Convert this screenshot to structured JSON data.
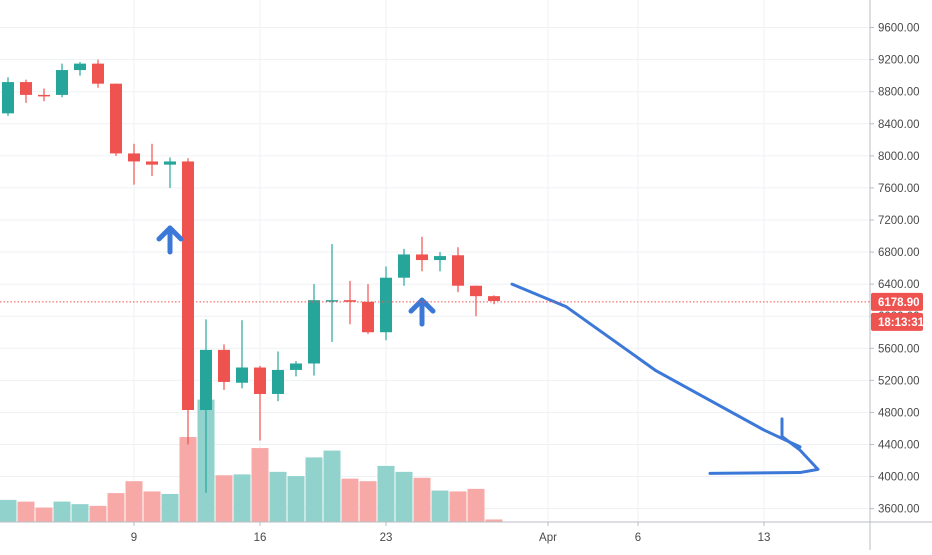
{
  "colors": {
    "up": "#26a69a",
    "down": "#ef5350",
    "up_volume": "#92d2cc",
    "down_volume": "#f7a9a7",
    "grid": "#eef1f4",
    "axis_text": "#4a4a4a",
    "annotation": "#3c78d8",
    "price_line": "#ef5350"
  },
  "price_badge": "6178.90",
  "countdown_badge": "18:13:31",
  "chart_data": {
    "type": "candlestick",
    "x_axis": {
      "type": "date",
      "ticks": [
        {
          "label": "9",
          "date": "2020-03-09"
        },
        {
          "label": "16",
          "date": "2020-03-16"
        },
        {
          "label": "23",
          "date": "2020-03-23"
        },
        {
          "label": "Apr",
          "date": "2020-04-01"
        },
        {
          "label": "6",
          "date": "2020-04-06"
        },
        {
          "label": "13",
          "date": "2020-04-13"
        }
      ],
      "range": [
        "2020-03-02",
        "2020-04-18"
      ]
    },
    "y_axis": {
      "ticks": [
        "9600.00",
        "9200.00",
        "8800.00",
        "8400.00",
        "8000.00",
        "7600.00",
        "7200.00",
        "6800.00",
        "6400.00",
        "6000.00",
        "5600.00",
        "5200.00",
        "4800.00",
        "4400.00",
        "4000.00",
        "3600.00"
      ],
      "ylim": [
        3200,
        9900
      ],
      "position": "right"
    },
    "grid": true,
    "current_price": 6178.9,
    "candles": [
      {
        "date": "2020-03-02",
        "open": 8530,
        "high": 8980,
        "low": 8500,
        "close": 8920
      },
      {
        "date": "2020-03-03",
        "open": 8920,
        "high": 8950,
        "low": 8660,
        "close": 8760
      },
      {
        "date": "2020-03-04",
        "open": 8760,
        "high": 8840,
        "low": 8680,
        "close": 8750
      },
      {
        "date": "2020-03-05",
        "open": 8760,
        "high": 9150,
        "low": 8730,
        "close": 9070
      },
      {
        "date": "2020-03-06",
        "open": 9070,
        "high": 9170,
        "low": 9000,
        "close": 9150
      },
      {
        "date": "2020-03-07",
        "open": 9150,
        "high": 9200,
        "low": 8850,
        "close": 8900
      },
      {
        "date": "2020-03-08",
        "open": 8900,
        "high": 8900,
        "low": 8000,
        "close": 8030
      },
      {
        "date": "2020-03-09",
        "open": 8030,
        "high": 8150,
        "low": 7640,
        "close": 7930
      },
      {
        "date": "2020-03-10",
        "open": 7930,
        "high": 8150,
        "low": 7750,
        "close": 7890
      },
      {
        "date": "2020-03-11",
        "open": 7890,
        "high": 7980,
        "low": 7600,
        "close": 7930
      },
      {
        "date": "2020-03-12",
        "open": 7930,
        "high": 7970,
        "low": 4400,
        "close": 4830
      },
      {
        "date": "2020-03-13",
        "open": 4830,
        "high": 5960,
        "low": 3800,
        "close": 5580
      },
      {
        "date": "2020-03-14",
        "open": 5580,
        "high": 5650,
        "low": 5080,
        "close": 5180
      },
      {
        "date": "2020-03-15",
        "open": 5170,
        "high": 5950,
        "low": 5100,
        "close": 5360
      },
      {
        "date": "2020-03-16",
        "open": 5360,
        "high": 5380,
        "low": 4450,
        "close": 5030
      },
      {
        "date": "2020-03-17",
        "open": 5030,
        "high": 5560,
        "low": 4940,
        "close": 5330
      },
      {
        "date": "2020-03-18",
        "open": 5330,
        "high": 5440,
        "low": 5250,
        "close": 5410
      },
      {
        "date": "2020-03-19",
        "open": 5410,
        "high": 6400,
        "low": 5260,
        "close": 6200
      },
      {
        "date": "2020-03-20",
        "open": 6200,
        "high": 6900,
        "low": 5680,
        "close": 6200
      },
      {
        "date": "2020-03-21",
        "open": 6200,
        "high": 6440,
        "low": 5900,
        "close": 6180
      },
      {
        "date": "2020-03-22",
        "open": 6180,
        "high": 6400,
        "low": 5780,
        "close": 5800
      },
      {
        "date": "2020-03-23",
        "open": 5800,
        "high": 6620,
        "low": 5700,
        "close": 6480
      },
      {
        "date": "2020-03-24",
        "open": 6480,
        "high": 6840,
        "low": 6380,
        "close": 6770
      },
      {
        "date": "2020-03-25",
        "open": 6770,
        "high": 6990,
        "low": 6560,
        "close": 6700
      },
      {
        "date": "2020-03-26",
        "open": 6700,
        "high": 6800,
        "low": 6560,
        "close": 6750
      },
      {
        "date": "2020-03-27",
        "open": 6760,
        "high": 6860,
        "low": 6300,
        "close": 6380
      },
      {
        "date": "2020-03-28",
        "open": 6380,
        "high": 6380,
        "low": 6000,
        "close": 6250
      },
      {
        "date": "2020-03-29",
        "open": 6250,
        "high": 6260,
        "low": 6150,
        "close": 6190
      }
    ],
    "volume": [
      {
        "date": "2020-03-02",
        "direction": "up",
        "value": 0.26
      },
      {
        "date": "2020-03-03",
        "direction": "down",
        "value": 0.24
      },
      {
        "date": "2020-03-04",
        "direction": "down",
        "value": 0.17
      },
      {
        "date": "2020-03-05",
        "direction": "up",
        "value": 0.24
      },
      {
        "date": "2020-03-06",
        "direction": "up",
        "value": 0.21
      },
      {
        "date": "2020-03-07",
        "direction": "down",
        "value": 0.19
      },
      {
        "date": "2020-03-08",
        "direction": "down",
        "value": 0.34
      },
      {
        "date": "2020-03-09",
        "direction": "down",
        "value": 0.48
      },
      {
        "date": "2020-03-10",
        "direction": "down",
        "value": 0.36
      },
      {
        "date": "2020-03-11",
        "direction": "up",
        "value": 0.33
      },
      {
        "date": "2020-03-12",
        "direction": "down",
        "value": 1.0
      },
      {
        "date": "2020-03-13",
        "direction": "up",
        "value": 1.44
      },
      {
        "date": "2020-03-14",
        "direction": "down",
        "value": 0.55
      },
      {
        "date": "2020-03-15",
        "direction": "up",
        "value": 0.56
      },
      {
        "date": "2020-03-16",
        "direction": "down",
        "value": 0.87
      },
      {
        "date": "2020-03-17",
        "direction": "up",
        "value": 0.59
      },
      {
        "date": "2020-03-18",
        "direction": "up",
        "value": 0.54
      },
      {
        "date": "2020-03-19",
        "direction": "up",
        "value": 0.76
      },
      {
        "date": "2020-03-20",
        "direction": "up",
        "value": 0.84
      },
      {
        "date": "2020-03-21",
        "direction": "down",
        "value": 0.51
      },
      {
        "date": "2020-03-22",
        "direction": "down",
        "value": 0.48
      },
      {
        "date": "2020-03-23",
        "direction": "up",
        "value": 0.66
      },
      {
        "date": "2020-03-24",
        "direction": "up",
        "value": 0.59
      },
      {
        "date": "2020-03-25",
        "direction": "down",
        "value": 0.52
      },
      {
        "date": "2020-03-26",
        "direction": "up",
        "value": 0.37
      },
      {
        "date": "2020-03-27",
        "direction": "down",
        "value": 0.36
      },
      {
        "date": "2020-03-28",
        "direction": "down",
        "value": 0.39
      },
      {
        "date": "2020-03-29",
        "direction": "down",
        "value": 0.03
      }
    ],
    "annotations": [
      {
        "kind": "arrow-up",
        "date": "2020-03-11",
        "price": 7100
      },
      {
        "kind": "arrow-up",
        "date": "2020-03-25",
        "price": 6200
      },
      {
        "kind": "forecast-line",
        "points": [
          {
            "date": "2020-03-30",
            "price": 6400
          },
          {
            "date": "2020-04-02",
            "price": 6120
          },
          {
            "date": "2020-04-07",
            "price": 5320
          },
          {
            "date": "2020-04-13",
            "price": 4580
          },
          {
            "date": "2020-04-15",
            "price": 4370
          }
        ]
      },
      {
        "kind": "arrowhead",
        "points": [
          {
            "date": "2020-04-14",
            "price": 4720
          },
          {
            "date": "2020-04-14",
            "price": 4500
          },
          {
            "date": "2020-04-15",
            "price": 4330
          },
          {
            "date": "2020-04-16",
            "price": 4090
          },
          {
            "date": "2020-04-15",
            "price": 4050
          },
          {
            "date": "2020-04-10",
            "price": 4040
          }
        ]
      }
    ]
  }
}
